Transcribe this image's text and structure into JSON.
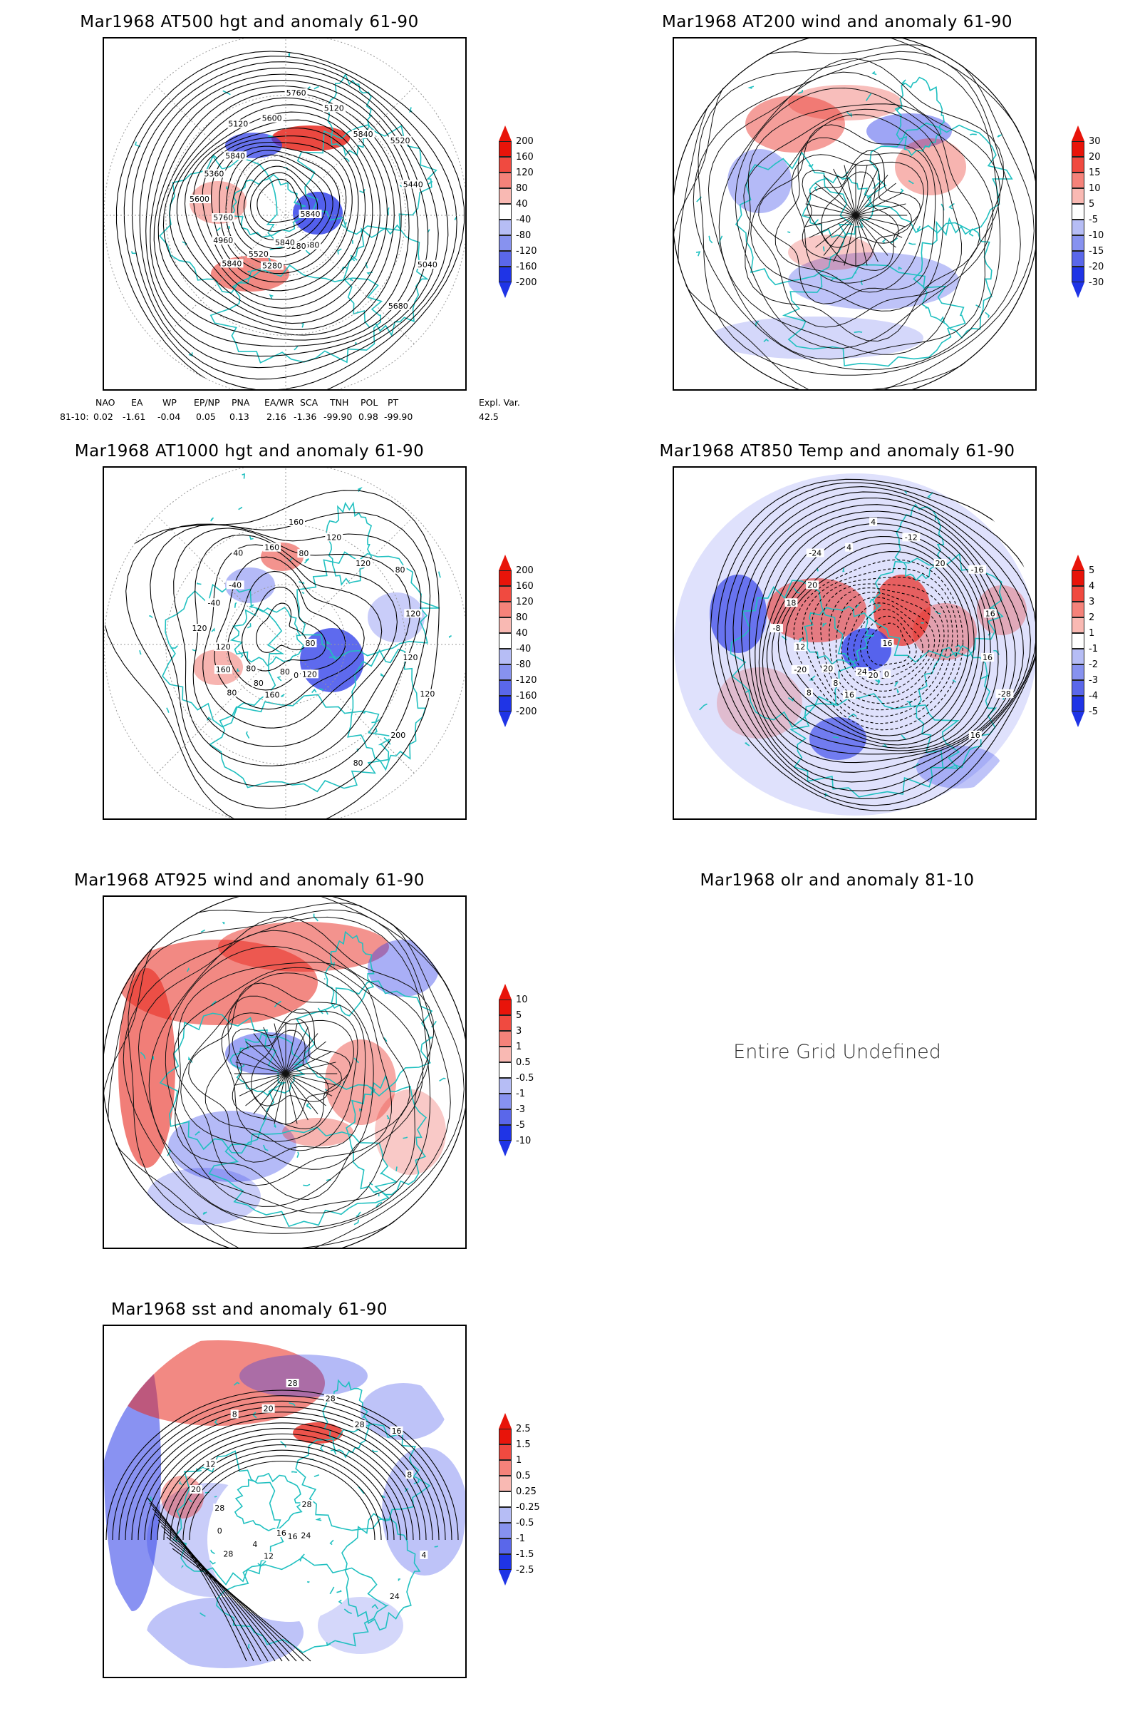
{
  "panels": [
    {
      "id": "p1",
      "title": "Mar1968 AT500 hgt and anomaly 61-90",
      "contours": [
        "5840",
        "5840",
        "5760",
        "5680",
        "5600",
        "5520",
        "5280",
        "5120",
        "5040",
        "4960",
        "5120",
        "5280",
        "5360",
        "5440",
        "5520",
        "5600",
        "5680",
        "5760",
        "5840",
        "5840",
        "5840"
      ],
      "colorbar": {
        "levels": [
          "200",
          "160",
          "120",
          "80",
          "40",
          "-40",
          "-80",
          "-120",
          "-160",
          "-200"
        ]
      }
    },
    {
      "id": "p2",
      "title": "Mar1968 AT200 wind and anomaly 61-90",
      "colorbar": {
        "levels": [
          "30",
          "20",
          "15",
          "10",
          "5",
          "-5",
          "-10",
          "-15",
          "-20",
          "-30"
        ]
      }
    },
    {
      "id": "p3",
      "title": "Mar1968 AT1000 hgt and anomaly 61-90",
      "contours": [
        "80",
        "80",
        "160",
        "120",
        "120",
        "80",
        "160",
        "40",
        "120",
        "160",
        "120",
        "0",
        "-40",
        "120",
        "80",
        "160",
        "200",
        "120",
        "120",
        "80",
        "-40",
        "120",
        "80",
        "80",
        "80"
      ],
      "colorbar": {
        "levels": [
          "200",
          "160",
          "120",
          "80",
          "40",
          "-40",
          "-80",
          "-120",
          "-160",
          "-200"
        ]
      }
    },
    {
      "id": "p4",
      "title": "Mar1968 AT850 Temp and anomaly 61-90",
      "contours": [
        "16",
        "8",
        "4",
        "0",
        "-8",
        "-16",
        "16",
        "-24",
        "-28",
        "-20",
        "-12",
        "20",
        "18",
        "16",
        "8",
        "4",
        "16",
        "12",
        "20",
        "24",
        "20",
        "16",
        "20"
      ],
      "colorbar": {
        "levels": [
          "5",
          "4",
          "3",
          "2",
          "1",
          "-1",
          "-2",
          "-3",
          "-4",
          "-5"
        ]
      }
    },
    {
      "id": "p5",
      "title": "Mar1968 AT925 wind and anomaly 61-90",
      "colorbar": {
        "levels": [
          "10",
          "5",
          "3",
          "1",
          "0.5",
          "-0.5",
          "-1",
          "-3",
          "-5",
          "-10"
        ]
      }
    },
    {
      "id": "p6",
      "title": "Mar1968 olr and anomaly 81-10",
      "message": "Entire Grid Undefined"
    },
    {
      "id": "p7",
      "title": "Mar1968 sst and anomaly 61-90",
      "contours": [
        "28",
        "28",
        "28",
        "24",
        "20",
        "16",
        "12",
        "8",
        "4",
        "0",
        "28",
        "16",
        "12",
        "8",
        "4",
        "20",
        "24",
        "28",
        "28",
        "16"
      ],
      "colorbar": {
        "levels": [
          "2.5",
          "1.5",
          "1",
          "0.5",
          "0.25",
          "-0.25",
          "-0.5",
          "-1",
          "-1.5",
          "-2.5"
        ]
      }
    }
  ],
  "indices": {
    "headers": [
      "NAO",
      "EA",
      "WP",
      "EP/NP",
      "PNA",
      "EA/WR",
      "SCA",
      "TNH",
      "POL",
      "PT",
      "Expl. Var."
    ],
    "row_label": "81-10:",
    "values": [
      "0.02",
      "-1.61",
      "-0.04",
      "0.05",
      "0.13",
      "2.16",
      "-1.36",
      "-99.90",
      "0.98",
      "-99.90",
      "42.5"
    ]
  },
  "colors": {
    "coast": "#20c0c0",
    "pos": "#e8281e",
    "neg": "#2838e8",
    "contour": "#000000",
    "grid": "#999999"
  }
}
